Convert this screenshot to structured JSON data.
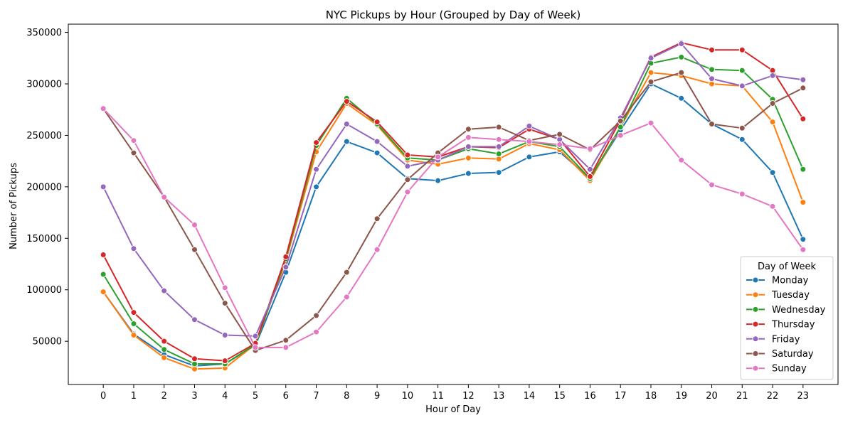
{
  "chart_data": {
    "type": "line",
    "title": "NYC Pickups by Hour (Grouped by Day of Week)",
    "xlabel": "Hour of Day",
    "ylabel": "Number of Pickups",
    "x": [
      0,
      1,
      2,
      3,
      4,
      5,
      6,
      7,
      8,
      9,
      10,
      11,
      12,
      13,
      14,
      15,
      16,
      17,
      18,
      19,
      20,
      21,
      22,
      23
    ],
    "xlim": [
      -1.15,
      24.15
    ],
    "ylim": [
      8000,
      358000
    ],
    "yticks": [
      50000,
      100000,
      150000,
      200000,
      250000,
      300000,
      350000
    ],
    "grid": false,
    "legend": {
      "title": "Day of Week",
      "placement": "lower-right"
    },
    "series": [
      {
        "name": "Monday",
        "color": "#1f77b4",
        "values": [
          98000,
          57000,
          37000,
          26000,
          28000,
          46000,
          117000,
          200000,
          244000,
          233000,
          208000,
          206000,
          213000,
          214000,
          229000,
          234000,
          208000,
          255000,
          300000,
          286000,
          261000,
          246000,
          214000,
          149000
        ]
      },
      {
        "name": "Tuesday",
        "color": "#ff7f0e",
        "values": [
          98000,
          56000,
          34000,
          23000,
          24000,
          47000,
          128000,
          234000,
          281000,
          260000,
          226000,
          222000,
          228000,
          227000,
          242000,
          236000,
          206000,
          258000,
          311000,
          308000,
          300000,
          298000,
          263000,
          185000
        ]
      },
      {
        "name": "Wednesday",
        "color": "#2ca02c",
        "values": [
          115000,
          67000,
          42000,
          28000,
          28000,
          47000,
          130000,
          240000,
          286000,
          261000,
          228000,
          226000,
          237000,
          232000,
          244000,
          239000,
          208000,
          258000,
          320000,
          326000,
          314000,
          313000,
          285000,
          217000
        ]
      },
      {
        "name": "Thursday",
        "color": "#d62728",
        "values": [
          134000,
          78000,
          50000,
          33000,
          31000,
          48000,
          132000,
          243000,
          283000,
          263000,
          231000,
          229000,
          239000,
          238000,
          256000,
          246000,
          210000,
          265000,
          326000,
          340000,
          333000,
          333000,
          313000,
          266000
        ]
      },
      {
        "name": "Friday",
        "color": "#9467bd",
        "values": [
          200000,
          140000,
          99000,
          71000,
          56000,
          55000,
          122000,
          217000,
          261000,
          244000,
          220000,
          226000,
          239000,
          239000,
          259000,
          246000,
          217000,
          267000,
          325000,
          339000,
          305000,
          298000,
          308000,
          304000
        ]
      },
      {
        "name": "Saturday",
        "color": "#8c564b",
        "values": [
          276000,
          233000,
          190000,
          139000,
          87000,
          41000,
          51000,
          75000,
          117000,
          169000,
          207000,
          233000,
          256000,
          258000,
          245000,
          251000,
          236000,
          264000,
          302000,
          311000,
          261000,
          257000,
          281000,
          296000
        ]
      },
      {
        "name": "Sunday",
        "color": "#e377c2",
        "values": [
          276000,
          245000,
          190000,
          163000,
          102000,
          44000,
          44000,
          59000,
          93000,
          139000,
          195000,
          229000,
          248000,
          246000,
          244000,
          241000,
          237000,
          250000,
          262000,
          226000,
          202000,
          193000,
          181000,
          139000
        ]
      }
    ]
  }
}
